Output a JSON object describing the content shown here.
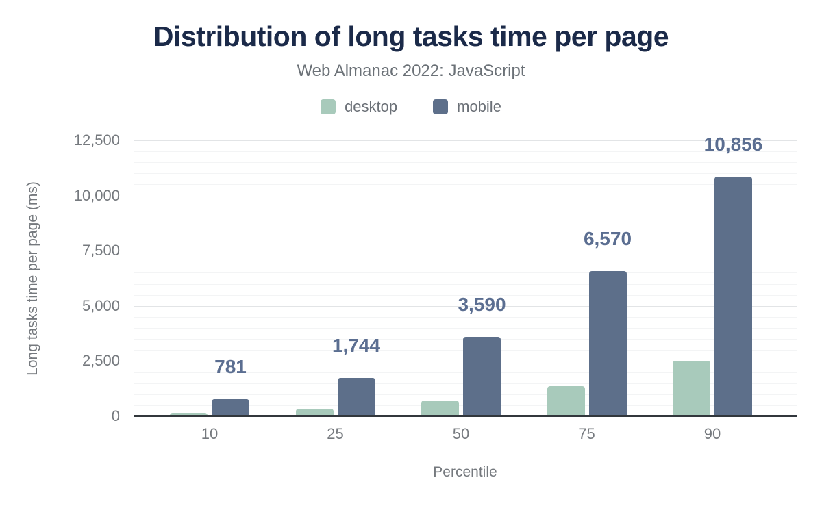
{
  "header": {
    "title": "Distribution of long tasks time per page",
    "subtitle": "Web Almanac 2022: JavaScript"
  },
  "legend": {
    "items": [
      {
        "label": "desktop",
        "color": "#a8cabb"
      },
      {
        "label": "mobile",
        "color": "#5d6f8a"
      }
    ]
  },
  "colors": {
    "title_text": "#1b2a49",
    "subtitle_text": "#6b7177",
    "axis_text": "#75797e",
    "data_label_text": "#5b6e91",
    "desktop_bar": "#a8cabb",
    "mobile_bar": "#5d6f8a",
    "gridline_major": "#e2e4e6",
    "gridline_minor": "#f3f4f5",
    "axis_line": "#32373c"
  },
  "chart_data": {
    "type": "bar",
    "title": "Distribution of long tasks time per page",
    "subtitle": "Web Almanac 2022: JavaScript",
    "categories": [
      "10",
      "25",
      "50",
      "75",
      "90"
    ],
    "series": [
      {
        "name": "desktop",
        "color": "#a8cabb",
        "values": [
          160,
          340,
          700,
          1350,
          2500
        ],
        "show_data_labels": false,
        "data_labels": []
      },
      {
        "name": "mobile",
        "color": "#5d6f8a",
        "values": [
          781,
          1744,
          3590,
          6570,
          10856
        ],
        "show_data_labels": true,
        "data_labels": [
          "781",
          "1,744",
          "3,590",
          "6,570",
          "10,856"
        ]
      }
    ],
    "xlabel": "Percentile",
    "ylabel": "Long tasks time per page (ms)",
    "ylim": [
      0,
      12500
    ],
    "yticks": [
      {
        "value": 0,
        "label": "0"
      },
      {
        "value": 2500,
        "label": "2,500"
      },
      {
        "value": 5000,
        "label": "5,000"
      },
      {
        "value": 7500,
        "label": "7,500"
      },
      {
        "value": 10000,
        "label": "10,000"
      },
      {
        "value": 12500,
        "label": "12,500"
      }
    ],
    "minor_grid_step": 500,
    "grid": true,
    "legend_position": "top"
  }
}
